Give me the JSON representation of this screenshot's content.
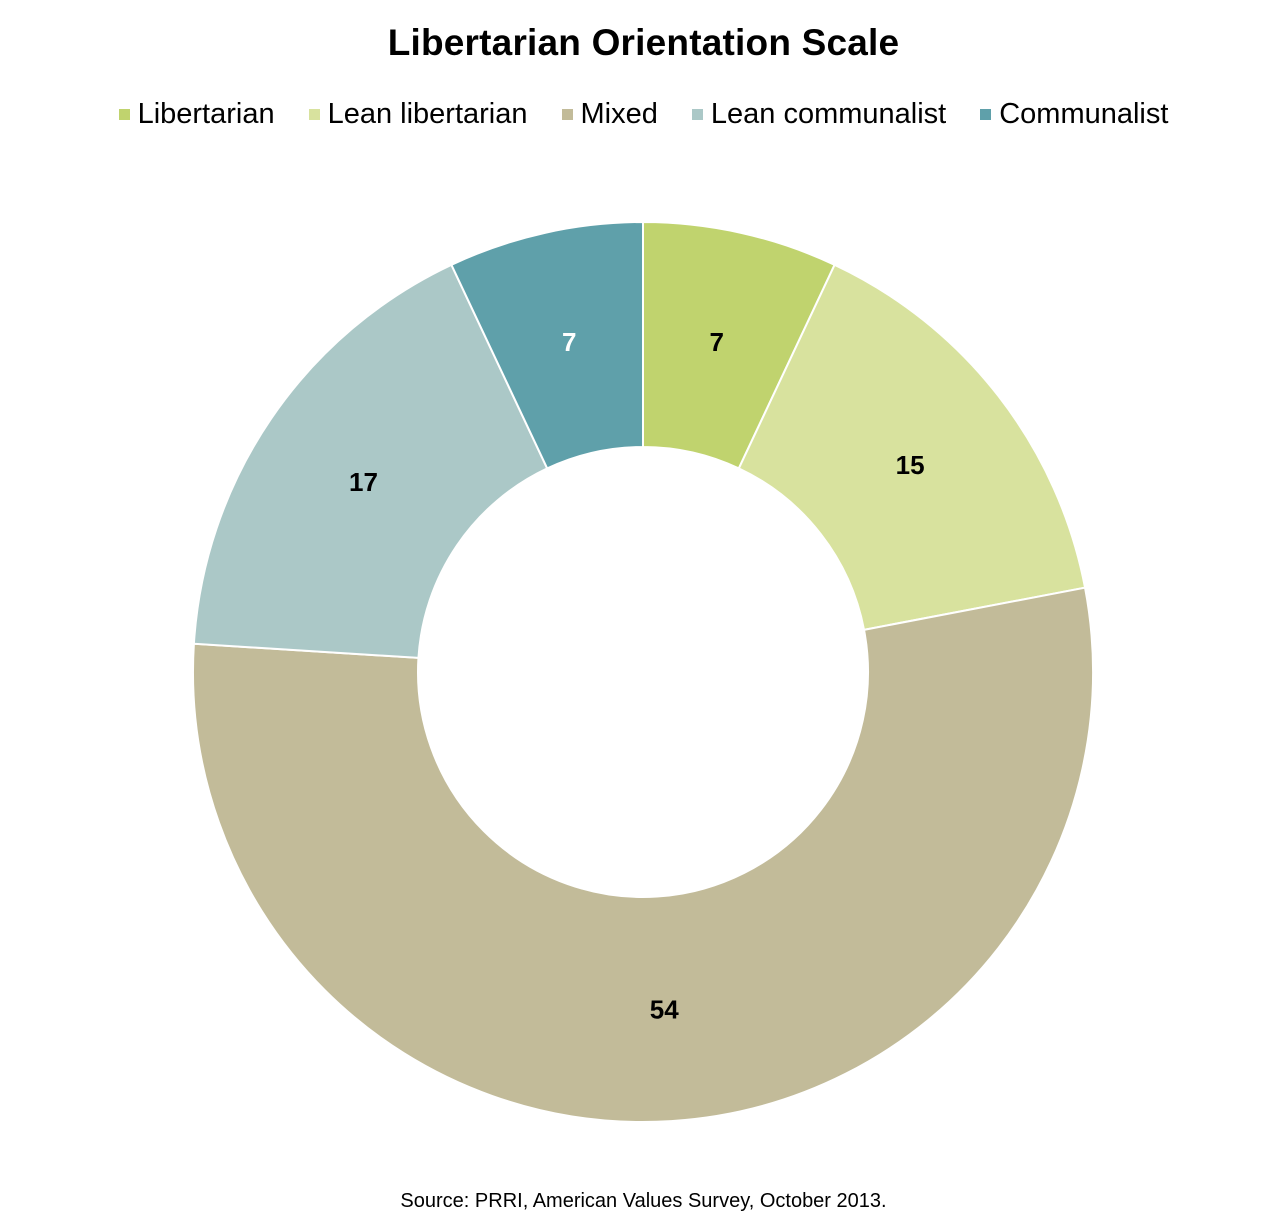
{
  "chart_data": {
    "type": "pie",
    "title": "Libertarian Orientation Scale",
    "donut": true,
    "categories": [
      "Libertarian",
      "Lean libertarian",
      "Mixed",
      "Lean communalist",
      "Communalist"
    ],
    "values": [
      7,
      15,
      54,
      17,
      7
    ],
    "colors": [
      "#c0d36e",
      "#d8e29e",
      "#c2bb99",
      "#abc8c7",
      "#5fa0aa"
    ],
    "label_colors": [
      "#000000",
      "#000000",
      "#000000",
      "#000000",
      "#ffffff"
    ],
    "legend_position": "top",
    "start_angle": "12 o'clock",
    "direction": "clockwise",
    "source": "Source: PRRI, American Values Survey, October 2013."
  }
}
